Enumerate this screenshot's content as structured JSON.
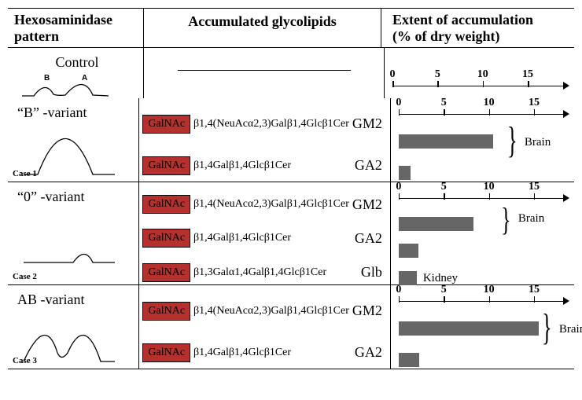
{
  "headers": {
    "pattern_l1": "Hexosaminidase",
    "pattern_l2": "pattern",
    "glyco": "Accumulated glycolipids",
    "extent_l1": "Extent of accumulation",
    "extent_l2": "(% of dry weight)"
  },
  "axis": {
    "max": 17,
    "ticks": [
      0,
      5,
      10,
      15
    ]
  },
  "galnac_label": "GalNAc",
  "colors": {
    "galnac_bg": "#b4312e",
    "bar_fill": "#666666"
  },
  "control": {
    "label": "Control",
    "peak_B": "B",
    "peak_A": "A"
  },
  "variants": [
    {
      "name": "“B” -variant",
      "case": "Case 1",
      "glycolipids": [
        {
          "formula": "β1,4(NeuAcα2,3)Galβ1,4Glcβ1Cer",
          "abbrev": "GM2"
        },
        {
          "formula": "β1,4Galβ1,4Glcβ1Cer",
          "abbrev": "GA2"
        }
      ],
      "bars": [
        {
          "value": 10.5
        },
        {
          "value": 1.3
        }
      ],
      "tissue": "Brain"
    },
    {
      "name": "“0” -variant",
      "case": "Case 2",
      "glycolipids": [
        {
          "formula": "β1,4(NeuAcα2,3)Galβ1,4Glcβ1Cer",
          "abbrev": "GM2"
        },
        {
          "formula": "β1,4Galβ1,4Glcβ1Cer",
          "abbrev": "GA2"
        },
        {
          "formula": "β1,3Galα1,4Galβ1,4Glcβ1Cer",
          "abbrev": "Glb"
        }
      ],
      "bars": [
        {
          "value": 8.3
        },
        {
          "value": 2.2
        },
        {
          "value": 2.0,
          "label": "Kidney"
        }
      ],
      "tissue": "Brain"
    },
    {
      "name": "AB -variant",
      "case": "Case 3",
      "glycolipids": [
        {
          "formula": "β1,4(NeuAcα2,3)Galβ1,4Glcβ1Cer",
          "abbrev": "GM2"
        },
        {
          "formula": "β1,4Galβ1,4Glcβ1Cer",
          "abbrev": "GA2"
        }
      ],
      "bars": [
        {
          "value": 15.5
        },
        {
          "value": 2.3
        }
      ],
      "tissue": "Brain"
    }
  ]
}
